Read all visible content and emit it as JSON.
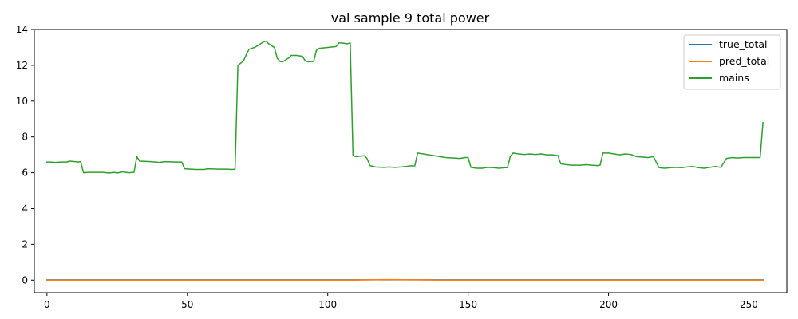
{
  "chart_data": {
    "type": "line",
    "title": "val sample 9 total power",
    "xlabel": "",
    "ylabel": "",
    "xlim": [
      -4.5,
      263.5
    ],
    "ylim": [
      -0.7,
      14.0
    ],
    "xticks": [
      0,
      50,
      100,
      150,
      200,
      250
    ],
    "yticks": [
      0,
      2,
      4,
      6,
      8,
      10,
      12,
      14
    ],
    "grid": false,
    "legend_position": "top-right",
    "series": [
      {
        "name": "true_total",
        "color": "#1f77b4",
        "points": [
          [
            0,
            0.02
          ],
          [
            255,
            0.02
          ]
        ]
      },
      {
        "name": "pred_total",
        "color": "#ff7f0e",
        "points": [
          [
            0,
            0.0
          ],
          [
            110,
            0.0
          ],
          [
            115,
            0.02
          ],
          [
            120,
            0.03
          ],
          [
            130,
            0.02
          ],
          [
            140,
            0.0
          ],
          [
            255,
            0.0
          ]
        ]
      },
      {
        "name": "mains",
        "color": "#2ca02c",
        "points": [
          [
            0,
            6.6
          ],
          [
            1,
            6.6
          ],
          [
            3,
            6.58
          ],
          [
            5,
            6.6
          ],
          [
            7,
            6.6
          ],
          [
            8,
            6.65
          ],
          [
            10,
            6.62
          ],
          [
            11,
            6.6
          ],
          [
            12,
            6.62
          ],
          [
            13,
            6.0
          ],
          [
            15,
            6.02
          ],
          [
            20,
            6.02
          ],
          [
            22,
            5.98
          ],
          [
            24,
            6.02
          ],
          [
            25,
            5.98
          ],
          [
            27,
            6.05
          ],
          [
            29,
            6.0
          ],
          [
            31,
            6.02
          ],
          [
            32,
            6.9
          ],
          [
            33,
            6.65
          ],
          [
            37,
            6.62
          ],
          [
            40,
            6.58
          ],
          [
            42,
            6.62
          ],
          [
            46,
            6.6
          ],
          [
            48,
            6.6
          ],
          [
            49,
            6.22
          ],
          [
            53,
            6.18
          ],
          [
            56,
            6.18
          ],
          [
            57,
            6.22
          ],
          [
            61,
            6.2
          ],
          [
            64,
            6.2
          ],
          [
            66,
            6.18
          ],
          [
            67,
            6.2
          ],
          [
            68,
            12.0
          ],
          [
            70,
            12.25
          ],
          [
            71,
            12.6
          ],
          [
            72,
            12.9
          ],
          [
            74,
            13.0
          ],
          [
            76,
            13.2
          ],
          [
            77,
            13.3
          ],
          [
            78,
            13.35
          ],
          [
            79,
            13.2
          ],
          [
            81,
            13.0
          ],
          [
            82,
            12.4
          ],
          [
            83,
            12.22
          ],
          [
            84,
            12.2
          ],
          [
            86,
            12.4
          ],
          [
            87,
            12.55
          ],
          [
            89,
            12.55
          ],
          [
            91,
            12.5
          ],
          [
            92,
            12.25
          ],
          [
            93,
            12.2
          ],
          [
            95,
            12.22
          ],
          [
            96,
            12.85
          ],
          [
            97,
            12.95
          ],
          [
            100,
            13.0
          ],
          [
            103,
            13.05
          ],
          [
            104,
            13.25
          ],
          [
            105,
            13.25
          ],
          [
            107,
            13.2
          ],
          [
            108,
            13.25
          ],
          [
            109,
            6.95
          ],
          [
            110,
            6.9
          ],
          [
            113,
            6.95
          ],
          [
            114,
            6.8
          ],
          [
            115,
            6.4
          ],
          [
            117,
            6.32
          ],
          [
            120,
            6.3
          ],
          [
            122,
            6.32
          ],
          [
            124,
            6.3
          ],
          [
            126,
            6.32
          ],
          [
            128,
            6.35
          ],
          [
            129,
            6.38
          ],
          [
            131,
            6.38
          ],
          [
            132,
            7.1
          ],
          [
            134,
            7.05
          ],
          [
            136,
            7.0
          ],
          [
            138,
            6.95
          ],
          [
            140,
            6.9
          ],
          [
            142,
            6.85
          ],
          [
            145,
            6.82
          ],
          [
            147,
            6.8
          ],
          [
            149,
            6.85
          ],
          [
            150,
            6.85
          ],
          [
            151,
            6.3
          ],
          [
            153,
            6.25
          ],
          [
            155,
            6.25
          ],
          [
            157,
            6.3
          ],
          [
            159,
            6.28
          ],
          [
            161,
            6.25
          ],
          [
            163,
            6.28
          ],
          [
            164,
            6.28
          ],
          [
            165,
            6.9
          ],
          [
            166,
            7.1
          ],
          [
            168,
            7.05
          ],
          [
            170,
            7.02
          ],
          [
            172,
            7.05
          ],
          [
            174,
            7.02
          ],
          [
            176,
            7.05
          ],
          [
            178,
            7.0
          ],
          [
            180,
            7.0
          ],
          [
            182,
            6.95
          ],
          [
            183,
            6.5
          ],
          [
            185,
            6.45
          ],
          [
            187,
            6.42
          ],
          [
            190,
            6.42
          ],
          [
            192,
            6.45
          ],
          [
            194,
            6.42
          ],
          [
            196,
            6.4
          ],
          [
            197,
            6.42
          ],
          [
            198,
            7.1
          ],
          [
            200,
            7.1
          ],
          [
            202,
            7.05
          ],
          [
            204,
            7.0
          ],
          [
            206,
            7.05
          ],
          [
            208,
            7.02
          ],
          [
            210,
            6.9
          ],
          [
            212,
            6.88
          ],
          [
            214,
            6.85
          ],
          [
            216,
            6.9
          ],
          [
            218,
            6.28
          ],
          [
            220,
            6.25
          ],
          [
            222,
            6.28
          ],
          [
            224,
            6.3
          ],
          [
            226,
            6.28
          ],
          [
            228,
            6.32
          ],
          [
            230,
            6.35
          ],
          [
            232,
            6.28
          ],
          [
            234,
            6.25
          ],
          [
            236,
            6.3
          ],
          [
            238,
            6.35
          ],
          [
            240,
            6.3
          ],
          [
            242,
            6.8
          ],
          [
            244,
            6.85
          ],
          [
            246,
            6.82
          ],
          [
            248,
            6.85
          ],
          [
            250,
            6.85
          ],
          [
            252,
            6.85
          ],
          [
            254,
            6.85
          ],
          [
            255,
            8.8
          ]
        ]
      }
    ]
  }
}
